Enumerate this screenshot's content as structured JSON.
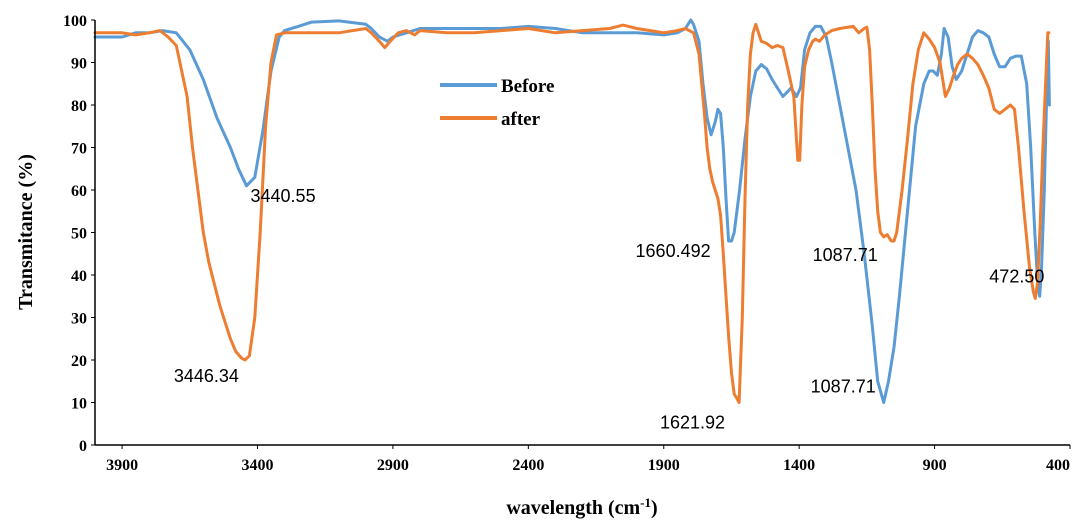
{
  "chart_data": {
    "type": "line",
    "xlabel": "wavelength (cm",
    "xlabel_sup": "-1",
    "xlabel_tail": ")",
    "ylabel": "Transmitance (%)",
    "xlim": [
      4000,
      400
    ],
    "ylim": [
      0,
      100
    ],
    "x_reversed": true,
    "xticks": [
      3900,
      3400,
      2900,
      2400,
      1900,
      1400,
      900,
      400
    ],
    "yticks": [
      0,
      10,
      20,
      30,
      40,
      50,
      60,
      70,
      80,
      90,
      100
    ],
    "grid": false,
    "legend_position": "upper-center",
    "series": [
      {
        "name": "Before",
        "color": "#5B9BD5",
        "points": [
          [
            4000,
            96
          ],
          [
            3900,
            96
          ],
          [
            3850,
            97
          ],
          [
            3800,
            97
          ],
          [
            3750,
            97.5
          ],
          [
            3700,
            97
          ],
          [
            3650,
            93
          ],
          [
            3600,
            86
          ],
          [
            3550,
            77
          ],
          [
            3500,
            70
          ],
          [
            3470,
            65
          ],
          [
            3440.55,
            61
          ],
          [
            3410,
            63
          ],
          [
            3380,
            74
          ],
          [
            3350,
            88
          ],
          [
            3320,
            96
          ],
          [
            3300,
            97.5
          ],
          [
            3250,
            98.5
          ],
          [
            3200,
            99.5
          ],
          [
            3100,
            99.8
          ],
          [
            3000,
            99
          ],
          [
            2980,
            98
          ],
          [
            2950,
            96
          ],
          [
            2920,
            95
          ],
          [
            2900,
            96
          ],
          [
            2850,
            97
          ],
          [
            2800,
            98
          ],
          [
            2700,
            98
          ],
          [
            2600,
            98
          ],
          [
            2500,
            98
          ],
          [
            2400,
            98.5
          ],
          [
            2300,
            98
          ],
          [
            2200,
            97
          ],
          [
            2100,
            97
          ],
          [
            2000,
            97
          ],
          [
            1900,
            96.5
          ],
          [
            1850,
            97
          ],
          [
            1820,
            98
          ],
          [
            1800,
            100
          ],
          [
            1790,
            99
          ],
          [
            1770,
            95
          ],
          [
            1755,
            85
          ],
          [
            1740,
            77
          ],
          [
            1725,
            73
          ],
          [
            1710,
            76
          ],
          [
            1700,
            79
          ],
          [
            1690,
            78
          ],
          [
            1680,
            70
          ],
          [
            1670,
            58
          ],
          [
            1660.492,
            48
          ],
          [
            1650,
            48
          ],
          [
            1640,
            50
          ],
          [
            1620,
            60
          ],
          [
            1600,
            72
          ],
          [
            1580,
            82
          ],
          [
            1560,
            88
          ],
          [
            1540,
            89.5
          ],
          [
            1520,
            88.5
          ],
          [
            1500,
            86
          ],
          [
            1480,
            84
          ],
          [
            1460,
            82
          ],
          [
            1445,
            83
          ],
          [
            1430,
            84
          ],
          [
            1420,
            83
          ],
          [
            1410,
            82
          ],
          [
            1395,
            84
          ],
          [
            1380,
            93
          ],
          [
            1360,
            97
          ],
          [
            1340,
            98.5
          ],
          [
            1320,
            98.5
          ],
          [
            1300,
            96
          ],
          [
            1280,
            90
          ],
          [
            1250,
            80
          ],
          [
            1220,
            70
          ],
          [
            1190,
            60
          ],
          [
            1160,
            45
          ],
          [
            1130,
            28
          ],
          [
            1110,
            15
          ],
          [
            1087.71,
            10
          ],
          [
            1070,
            15
          ],
          [
            1050,
            23
          ],
          [
            1030,
            35
          ],
          [
            1000,
            55
          ],
          [
            970,
            75
          ],
          [
            940,
            85
          ],
          [
            920,
            88
          ],
          [
            905,
            88
          ],
          [
            890,
            87
          ],
          [
            875,
            92
          ],
          [
            865,
            98
          ],
          [
            850,
            96
          ],
          [
            835,
            89
          ],
          [
            820,
            86
          ],
          [
            800,
            88
          ],
          [
            780,
            92
          ],
          [
            760,
            96
          ],
          [
            740,
            97.5
          ],
          [
            720,
            97
          ],
          [
            700,
            96
          ],
          [
            680,
            92
          ],
          [
            660,
            89
          ],
          [
            640,
            89
          ],
          [
            620,
            91
          ],
          [
            600,
            91.5
          ],
          [
            580,
            91.5
          ],
          [
            560,
            85
          ],
          [
            545,
            70
          ],
          [
            530,
            50
          ],
          [
            520,
            39
          ],
          [
            512,
            35
          ],
          [
            505,
            42
          ],
          [
            495,
            60
          ],
          [
            485,
            85
          ],
          [
            480,
            95
          ],
          [
            476,
            80
          ]
        ]
      },
      {
        "name": "after",
        "color": "#ED7D31",
        "points": [
          [
            4000,
            97
          ],
          [
            3900,
            97
          ],
          [
            3850,
            96.5
          ],
          [
            3800,
            97
          ],
          [
            3760,
            97.5
          ],
          [
            3730,
            96
          ],
          [
            3700,
            94
          ],
          [
            3680,
            88
          ],
          [
            3660,
            82
          ],
          [
            3640,
            70
          ],
          [
            3620,
            60
          ],
          [
            3600,
            50
          ],
          [
            3580,
            43
          ],
          [
            3560,
            38
          ],
          [
            3540,
            33
          ],
          [
            3520,
            29
          ],
          [
            3500,
            25
          ],
          [
            3480,
            22
          ],
          [
            3460,
            20.5
          ],
          [
            3446.34,
            20
          ],
          [
            3430,
            21
          ],
          [
            3410,
            30
          ],
          [
            3390,
            50
          ],
          [
            3370,
            75
          ],
          [
            3350,
            90
          ],
          [
            3330,
            96.5
          ],
          [
            3300,
            97
          ],
          [
            3200,
            97
          ],
          [
            3100,
            97
          ],
          [
            3000,
            98
          ],
          [
            2980,
            97
          ],
          [
            2950,
            95
          ],
          [
            2930,
            93.5
          ],
          [
            2910,
            95
          ],
          [
            2880,
            97
          ],
          [
            2850,
            97.5
          ],
          [
            2820,
            96.5
          ],
          [
            2800,
            97.5
          ],
          [
            2700,
            97
          ],
          [
            2600,
            97
          ],
          [
            2500,
            97.5
          ],
          [
            2400,
            98
          ],
          [
            2300,
            97
          ],
          [
            2200,
            97.5
          ],
          [
            2100,
            98
          ],
          [
            2050,
            98.8
          ],
          [
            2000,
            98
          ],
          [
            1950,
            97.5
          ],
          [
            1900,
            97
          ],
          [
            1850,
            97.5
          ],
          [
            1820,
            98
          ],
          [
            1790,
            97
          ],
          [
            1770,
            92
          ],
          [
            1760,
            85
          ],
          [
            1750,
            78
          ],
          [
            1740,
            70
          ],
          [
            1730,
            65
          ],
          [
            1720,
            62
          ],
          [
            1710,
            60
          ],
          [
            1700,
            58
          ],
          [
            1690,
            54
          ],
          [
            1680,
            45
          ],
          [
            1670,
            35
          ],
          [
            1660,
            25
          ],
          [
            1650,
            17
          ],
          [
            1640,
            12
          ],
          [
            1630,
            11
          ],
          [
            1621.92,
            10
          ],
          [
            1610,
            30
          ],
          [
            1600,
            58
          ],
          [
            1590,
            80
          ],
          [
            1580,
            92
          ],
          [
            1570,
            97
          ],
          [
            1560,
            99
          ],
          [
            1550,
            97
          ],
          [
            1540,
            95
          ],
          [
            1520,
            94.5
          ],
          [
            1500,
            93.5
          ],
          [
            1480,
            94
          ],
          [
            1460,
            93.5
          ],
          [
            1440,
            88
          ],
          [
            1420,
            82
          ],
          [
            1405,
            67
          ],
          [
            1398,
            67
          ],
          [
            1390,
            80
          ],
          [
            1380,
            89
          ],
          [
            1365,
            93
          ],
          [
            1350,
            95
          ],
          [
            1340,
            95.5
          ],
          [
            1325,
            95
          ],
          [
            1305,
            96.5
          ],
          [
            1280,
            97.5
          ],
          [
            1250,
            98
          ],
          [
            1200,
            98.5
          ],
          [
            1180,
            97
          ],
          [
            1160,
            98
          ],
          [
            1150,
            98.3
          ],
          [
            1140,
            93
          ],
          [
            1130,
            80
          ],
          [
            1120,
            65
          ],
          [
            1110,
            55
          ],
          [
            1100,
            50
          ],
          [
            1087.71,
            49
          ],
          [
            1075,
            49.5
          ],
          [
            1060,
            48
          ],
          [
            1050,
            48
          ],
          [
            1040,
            50
          ],
          [
            1020,
            60
          ],
          [
            1000,
            72
          ],
          [
            980,
            85
          ],
          [
            960,
            93
          ],
          [
            940,
            97
          ],
          [
            920,
            95.5
          ],
          [
            900,
            93.5
          ],
          [
            880,
            90
          ],
          [
            870,
            86
          ],
          [
            860,
            82
          ],
          [
            845,
            84
          ],
          [
            830,
            87
          ],
          [
            815,
            89.5
          ],
          [
            800,
            91
          ],
          [
            780,
            92
          ],
          [
            760,
            91
          ],
          [
            740,
            89.5
          ],
          [
            720,
            87
          ],
          [
            700,
            84
          ],
          [
            680,
            79
          ],
          [
            660,
            78
          ],
          [
            640,
            79
          ],
          [
            620,
            80
          ],
          [
            605,
            79
          ],
          [
            590,
            70
          ],
          [
            570,
            55
          ],
          [
            550,
            42
          ],
          [
            535,
            36
          ],
          [
            528,
            34.5
          ],
          [
            520,
            38
          ],
          [
            510,
            52
          ],
          [
            500,
            70
          ],
          [
            490,
            85
          ],
          [
            482,
            97
          ],
          [
            478,
            97
          ]
        ]
      }
    ],
    "annotations": [
      {
        "text": "3440.55",
        "x": 3440.55,
        "y": 61
      },
      {
        "text": "3446.34",
        "x": 3446.34,
        "y": 20
      },
      {
        "text": "1660.492",
        "x": 1660.492,
        "y": 48
      },
      {
        "text": "1621.92",
        "x": 1621.92,
        "y": 10
      },
      {
        "text": "1087.71",
        "x": 1087.71,
        "y": 49
      },
      {
        "text": "1087.71",
        "x": 1087.71,
        "y": 10
      },
      {
        "text": "472.50",
        "x": 472.5,
        "y": 35
      }
    ]
  }
}
